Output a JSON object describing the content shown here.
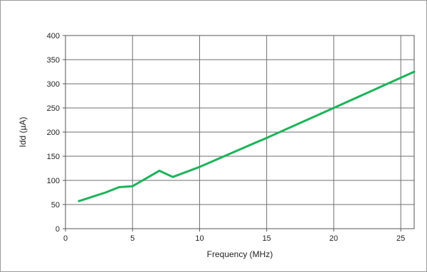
{
  "chart_data": {
    "type": "line",
    "title": "",
    "xlabel": "Frequency (MHz)",
    "ylabel": "Idd  (µA)",
    "xlim": [
      0,
      26
    ],
    "ylim": [
      0,
      400
    ],
    "x_ticks": [
      0,
      5,
      10,
      15,
      20,
      25
    ],
    "y_ticks": [
      0,
      50,
      100,
      150,
      200,
      250,
      300,
      350,
      400
    ],
    "x_tick_labels": [
      "0",
      "5",
      "10",
      "15",
      "20",
      "25"
    ],
    "y_tick_labels": [
      "0",
      "50",
      "100",
      "150",
      "200",
      "250",
      "300",
      "350",
      "400"
    ],
    "grid": true,
    "legend": "none",
    "line_color": "#1db35a",
    "series": [
      {
        "x": [
          1,
          2,
          3,
          4,
          5,
          6,
          7,
          8,
          10,
          12,
          14,
          15,
          20,
          26
        ],
        "y": [
          57,
          66,
          75,
          86,
          88,
          104,
          120,
          107,
          128,
          152,
          176,
          188,
          250,
          325
        ]
      }
    ]
  }
}
